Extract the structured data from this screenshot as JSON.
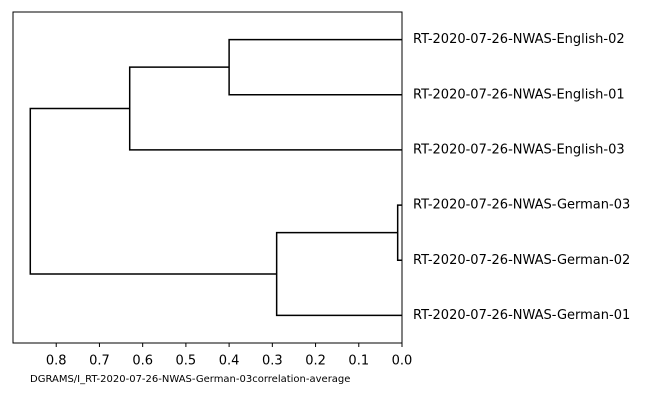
{
  "chart_data": {
    "type": "dendrogram",
    "xlabel": "DGRAMS/I_RT-2020-07-26-NWAS-German-03correlation-average",
    "xlim": [
      0.9,
      0
    ],
    "xticks": [
      0.8,
      0.7,
      0.6,
      0.5,
      0.4,
      0.3,
      0.2,
      0.1,
      {
        "value": 0,
        "label": "0.0"
      }
    ],
    "color": "#000000",
    "tree": {
      "height": 0.86,
      "children": [
        {
          "height": 0.63,
          "children": [
            {
              "height": 0.4,
              "children": [
                {
                  "label": "RT-2020-07-26-NWAS-English-02"
                },
                {
                  "label": "RT-2020-07-26-NWAS-English-01"
                }
              ]
            },
            {
              "label": "RT-2020-07-26-NWAS-English-03"
            }
          ]
        },
        {
          "height": 0.29,
          "children": [
            {
              "height": 0.01,
              "children": [
                {
                  "label": "RT-2020-07-26-NWAS-German-03"
                },
                {
                  "label": "RT-2020-07-26-NWAS-German-02"
                }
              ]
            },
            {
              "label": "RT-2020-07-26-NWAS-German-01"
            }
          ]
        }
      ]
    }
  }
}
